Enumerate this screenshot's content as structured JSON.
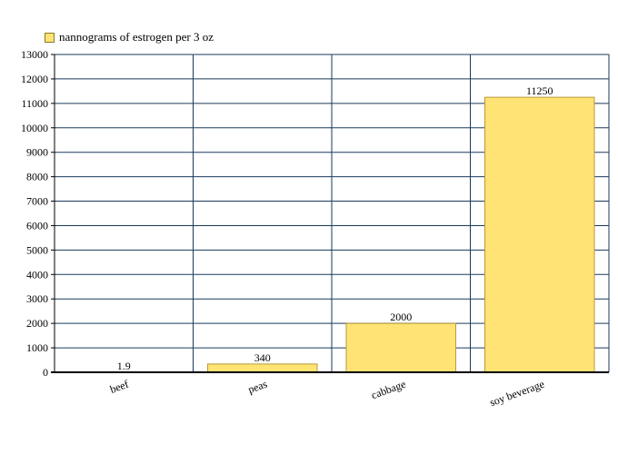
{
  "chart_data": {
    "type": "bar",
    "categories": [
      "beef",
      "peas",
      "cabbage",
      "soy beverage"
    ],
    "series": [
      {
        "name": "nannograms of estrogen per 3 oz",
        "values": [
          1.9,
          340,
          2000,
          11250
        ],
        "data_labels": [
          "1.9",
          "340",
          "2000",
          "11250"
        ],
        "color": "#ffe375"
      }
    ],
    "ylim": [
      0,
      13000
    ],
    "yticks": [
      0,
      1000,
      2000,
      3000,
      4000,
      5000,
      6000,
      7000,
      8000,
      9000,
      10000,
      11000,
      12000,
      13000
    ],
    "grid": true,
    "legend_position": "top-left",
    "title": "",
    "xlabel": "",
    "ylabel": "",
    "grid_color": "#1a3a5c",
    "bar_border_color": "#b89a3a"
  }
}
